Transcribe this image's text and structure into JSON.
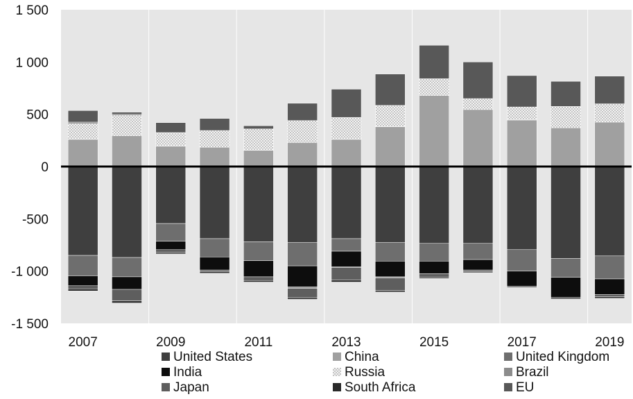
{
  "chart_data": {
    "type": "bar",
    "stacked": true,
    "title": "",
    "xlabel": "",
    "ylabel": "",
    "ylim": [
      -1500,
      1500
    ],
    "yticks": [
      1500,
      1000,
      500,
      0,
      -500,
      -1000,
      -1500
    ],
    "ytick_labels": [
      "1 500",
      "1 000",
      "500",
      "0",
      "-500",
      "-1 000",
      "-1 500"
    ],
    "xtick_labels": [
      "2007",
      "2009",
      "2011",
      "2013",
      "2015",
      "2017",
      "2019"
    ],
    "categories": [
      "2007",
      "2008",
      "2009",
      "2010",
      "2011",
      "2012",
      "2013",
      "2014",
      "2015",
      "2016",
      "2017",
      "2018",
      "2019"
    ],
    "grid": {
      "vertical": true,
      "horizontal": false
    },
    "legend_position": "bottom",
    "series": [
      {
        "name": "United States",
        "color": "#3f3f3f",
        "pattern": "solid",
        "values": [
          -850,
          -870,
          -545,
          -690,
          -720,
          -725,
          -690,
          -725,
          -735,
          -735,
          -795,
          -880,
          -855
        ]
      },
      {
        "name": "China",
        "color": "#a0a0a0",
        "pattern": "solid",
        "values": [
          260,
          295,
          195,
          185,
          155,
          230,
          260,
          380,
          680,
          545,
          445,
          370,
          425
        ]
      },
      {
        "name": "United Kingdom",
        "color": "#6e6e6e",
        "pattern": "solid",
        "values": [
          -195,
          -185,
          -170,
          -175,
          -180,
          -225,
          -120,
          -180,
          -170,
          -155,
          -205,
          -180,
          -220
        ]
      },
      {
        "name": "India",
        "color": "#0d0d0d",
        "pattern": "solid",
        "values": [
          -95,
          -120,
          -80,
          -125,
          -155,
          -200,
          -150,
          -150,
          -120,
          -100,
          -145,
          -190,
          -150
        ]
      },
      {
        "name": "Russia",
        "color": "#f2f2f2",
        "pattern": "dotted",
        "values": [
          150,
          195,
          130,
          160,
          205,
          210,
          210,
          205,
          160,
          105,
          125,
          205,
          175
        ]
      },
      {
        "name": "Brazil",
        "color": "#8c8c8c",
        "pattern": "solid",
        "values": [
          15,
          10,
          0,
          0,
          0,
          -15,
          -5,
          -10,
          0,
          0,
          0,
          0,
          0
        ]
      },
      {
        "name": "Japan",
        "color": "#5e5e5e",
        "pattern": "solid",
        "values": [
          -30,
          -110,
          -25,
          -15,
          -35,
          -90,
          -120,
          -120,
          -35,
          -15,
          0,
          0,
          -20
        ]
      },
      {
        "name": "South Africa",
        "color": "#2a2a2a",
        "pattern": "solid",
        "values": [
          -20,
          -20,
          -15,
          -15,
          -15,
          -15,
          -20,
          -15,
          -10,
          -10,
          -10,
          -15,
          -15
        ]
      },
      {
        "name": "EU",
        "color": "#585858",
        "pattern": "solid",
        "values": [
          110,
          20,
          95,
          115,
          30,
          165,
          270,
          300,
          320,
          350,
          300,
          240,
          265
        ]
      }
    ]
  }
}
